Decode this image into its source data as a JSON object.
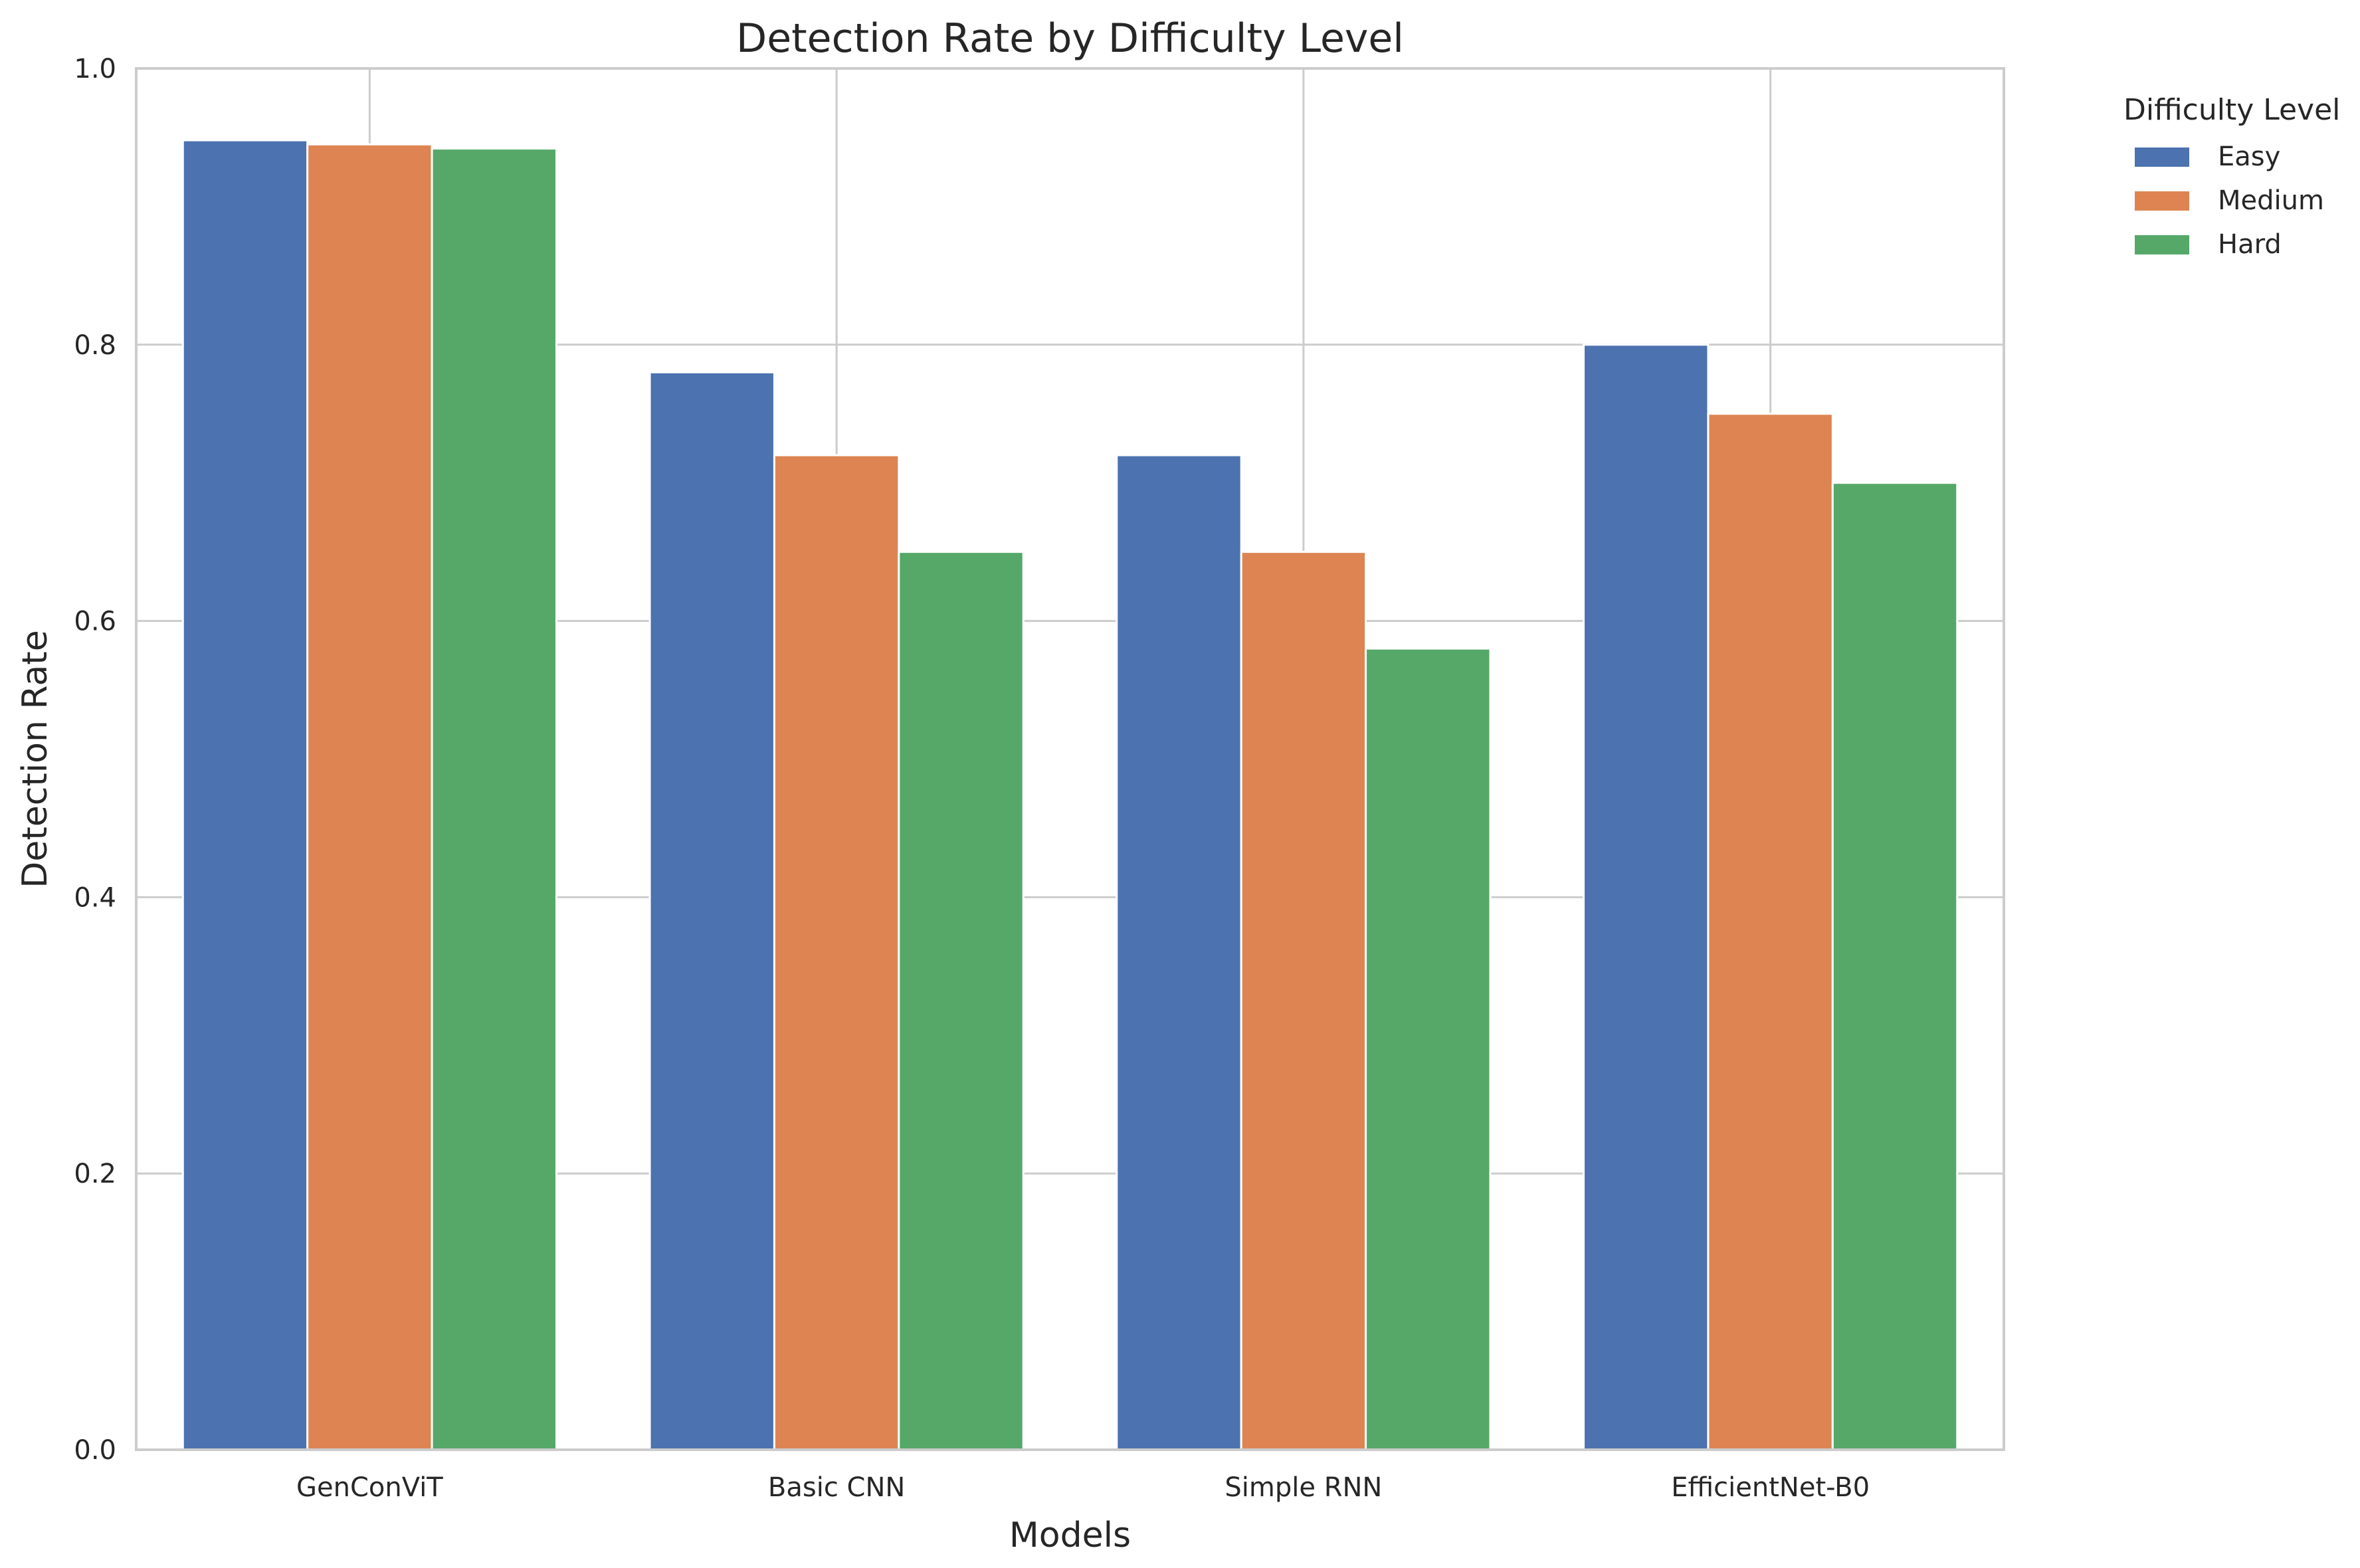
{
  "chart_data": {
    "type": "bar",
    "title": "Detection Rate by Difficulty Level",
    "xlabel": "Models",
    "ylabel": "Detection Rate",
    "categories": [
      "GenConViT",
      "Basic CNN",
      "Simple RNN",
      "EfficientNet-B0"
    ],
    "series": [
      {
        "name": "Easy",
        "values": [
          0.948,
          0.78,
          0.72,
          0.8
        ],
        "color": "#4c72b0"
      },
      {
        "name": "Medium",
        "values": [
          0.945,
          0.72,
          0.65,
          0.75
        ],
        "color": "#dd8452"
      },
      {
        "name": "Hard",
        "values": [
          0.942,
          0.65,
          0.58,
          0.7
        ],
        "color": "#55a868"
      }
    ],
    "ylim": [
      0,
      1.0
    ],
    "yticks": [
      "0.0",
      "0.2",
      "0.4",
      "0.6",
      "0.8",
      "1.0"
    ],
    "grid": true,
    "legend": {
      "title": "Difficulty Level",
      "placement": "outside-top-right"
    }
  }
}
